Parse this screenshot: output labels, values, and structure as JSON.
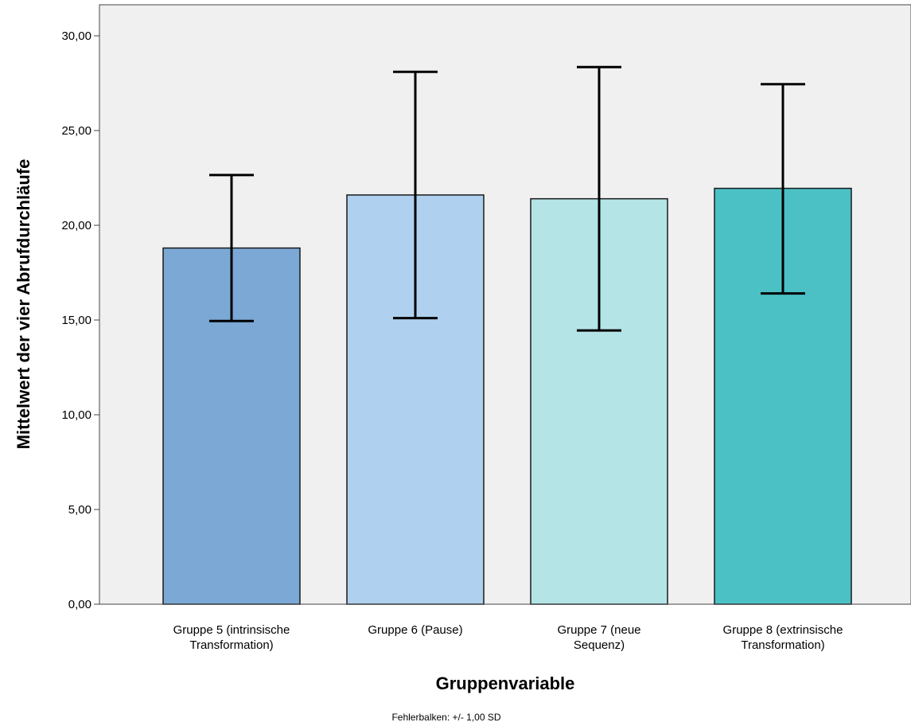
{
  "chart_data": {
    "type": "bar",
    "categories": [
      [
        "Gruppe 5 (intrinsische",
        "Transformation)"
      ],
      [
        "Gruppe 6 (Pause)"
      ],
      [
        "Gruppe 7 (neue",
        "Sequenz)"
      ],
      [
        "Gruppe 8 (extrinsische",
        "Transformation)"
      ]
    ],
    "values": [
      18.8,
      21.6,
      21.4,
      21.95
    ],
    "error_bars": [
      {
        "low": 14.95,
        "high": 22.65
      },
      {
        "low": 15.1,
        "high": 28.1
      },
      {
        "low": 14.45,
        "high": 28.35
      },
      {
        "low": 16.4,
        "high": 27.45
      }
    ],
    "bar_colors": [
      "#7ba8d4",
      "#afd0ee",
      "#b4e4e6",
      "#4bc1c6"
    ],
    "background_color": "#f0f0f0",
    "ylim": [
      0,
      30
    ],
    "yticks": [
      "0,00",
      "5,00",
      "10,00",
      "15,00",
      "20,00",
      "25,00",
      "30,00"
    ],
    "ytick_values": [
      0,
      5,
      10,
      15,
      20,
      25,
      30
    ],
    "xlabel": "Gruppenvariable",
    "ylabel": "Mittelwert der vier Abrufdurchläufe",
    "footnote": "Fehlerbalken: +/- 1,00 SD",
    "grid": false,
    "legend": "none"
  }
}
